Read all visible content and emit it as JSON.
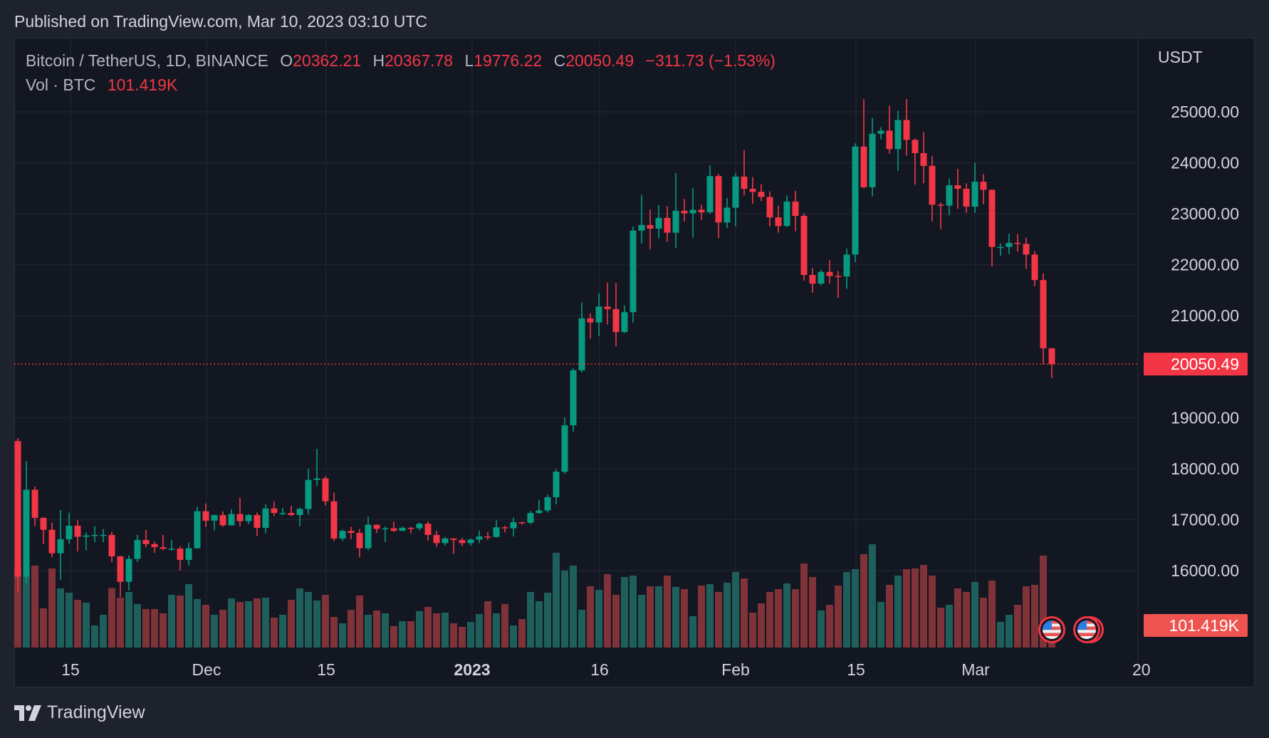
{
  "published": "Published on TradingView.com, Mar 10, 2023 03:10 UTC",
  "legend": {
    "symbol": "Bitcoin / TetherUS, 1D, BINANCE",
    "o_label": "O",
    "o": "20362.21",
    "h_label": "H",
    "h": "20367.78",
    "l_label": "L",
    "l": "19776.22",
    "c_label": "C",
    "c": "20050.49",
    "change": "−311.73 (−1.53%)",
    "vol_label": "Vol · BTC",
    "vol": "101.419K"
  },
  "price_axis": {
    "currency": "USDT",
    "labels": [
      "25000.00",
      "24000.00",
      "23000.00",
      "22000.00",
      "21000.00",
      "19000.00",
      "18000.00",
      "17000.00",
      "16000.00"
    ],
    "last_price_label": "20050.49",
    "last_volume_label": "101.419K"
  },
  "time_axis": {
    "labels": [
      "15",
      "Dec",
      "15",
      "2023",
      "16",
      "Feb",
      "15",
      "Mar",
      "20"
    ]
  },
  "logo": {
    "text": "TradingView"
  },
  "colors": {
    "up": "#089981",
    "down": "#f23645",
    "up_vol": "#1e5f5c",
    "down_vol": "#7f3238",
    "pane": "#131722",
    "grid": "#1f2330"
  },
  "event_icons": [
    "us-flag-icon",
    "us-flag-icon"
  ],
  "chart_data": {
    "type": "candlestick",
    "title": "Bitcoin / TetherUS, 1D, BINANCE",
    "ylabel": "USDT",
    "ylim": [
      15500,
      25800
    ],
    "last_price": 20050.49,
    "ohlc": [
      [
        18541,
        18600,
        15588,
        15880
      ],
      [
        15880,
        18150,
        15754,
        17586
      ],
      [
        17586,
        17650,
        16870,
        17034
      ],
      [
        17034,
        17048,
        16526,
        16800
      ],
      [
        16800,
        16940,
        16260,
        16340
      ],
      [
        16340,
        17190,
        15815,
        16616
      ],
      [
        16616,
        17134,
        16528,
        16880
      ],
      [
        16880,
        16985,
        16377,
        16664
      ],
      [
        16664,
        16750,
        16400,
        16690
      ],
      [
        16690,
        16870,
        16555,
        16700
      ],
      [
        16700,
        16820,
        16560,
        16700
      ],
      [
        16700,
        16760,
        16165,
        16280
      ],
      [
        16280,
        16290,
        15480,
        15780
      ],
      [
        15780,
        16300,
        15610,
        16230
      ],
      [
        16230,
        16700,
        16170,
        16600
      ],
      [
        16600,
        16800,
        16460,
        16520
      ],
      [
        16520,
        16570,
        16350,
        16460
      ],
      [
        16460,
        16700,
        16400,
        16430
      ],
      [
        16430,
        16600,
        16400,
        16430
      ],
      [
        16430,
        16480,
        16000,
        16210
      ],
      [
        16210,
        16550,
        16100,
        16440
      ],
      [
        16440,
        17250,
        16430,
        17165
      ],
      [
        17165,
        17320,
        16860,
        16980
      ],
      [
        16980,
        17100,
        16790,
        17090
      ],
      [
        17090,
        17160,
        16860,
        16890
      ],
      [
        16890,
        17200,
        16880,
        17110
      ],
      [
        17110,
        17430,
        16870,
        16970
      ],
      [
        16970,
        17110,
        16910,
        17090
      ],
      [
        17090,
        17140,
        16680,
        16840
      ],
      [
        16840,
        17300,
        16730,
        17220
      ],
      [
        17220,
        17360,
        17070,
        17130
      ],
      [
        17130,
        17230,
        17090,
        17130
      ],
      [
        17130,
        17270,
        17070,
        17090
      ],
      [
        17090,
        17240,
        16870,
        17210
      ],
      [
        17210,
        18000,
        17100,
        17780
      ],
      [
        17780,
        18390,
        17660,
        17810
      ],
      [
        17810,
        17850,
        17280,
        17360
      ],
      [
        17360,
        17530,
        16580,
        16630
      ],
      [
        16630,
        16800,
        16580,
        16780
      ],
      [
        16780,
        16860,
        16620,
        16740
      ],
      [
        16740,
        16820,
        16260,
        16440
      ],
      [
        16440,
        17060,
        16400,
        16900
      ],
      [
        16900,
        16900,
        16740,
        16820
      ],
      [
        16820,
        16870,
        16560,
        16830
      ],
      [
        16830,
        16960,
        16760,
        16780
      ],
      [
        16780,
        16860,
        16780,
        16840
      ],
      [
        16840,
        16860,
        16730,
        16830
      ],
      [
        16830,
        16940,
        16790,
        16920
      ],
      [
        16920,
        16970,
        16590,
        16700
      ],
      [
        16700,
        16780,
        16470,
        16540
      ],
      [
        16540,
        16660,
        16490,
        16630
      ],
      [
        16630,
        16640,
        16330,
        16600
      ],
      [
        16600,
        16640,
        16480,
        16540
      ],
      [
        16540,
        16630,
        16490,
        16610
      ],
      [
        16610,
        16790,
        16540,
        16670
      ],
      [
        16670,
        16760,
        16600,
        16660
      ],
      [
        16660,
        16990,
        16650,
        16850
      ],
      [
        16850,
        16880,
        16750,
        16830
      ],
      [
        16830,
        17040,
        16670,
        16950
      ],
      [
        16950,
        16960,
        16900,
        16940
      ],
      [
        16940,
        17170,
        16910,
        17130
      ],
      [
        17130,
        17390,
        17110,
        17180
      ],
      [
        17180,
        17490,
        17140,
        17440
      ],
      [
        17440,
        17990,
        17300,
        17940
      ],
      [
        17940,
        19000,
        17900,
        18850
      ],
      [
        18850,
        19970,
        18720,
        19930
      ],
      [
        19930,
        21260,
        19890,
        20950
      ],
      [
        20950,
        21050,
        20550,
        20870
      ],
      [
        20870,
        21440,
        20600,
        21180
      ],
      [
        21180,
        21650,
        20830,
        21130
      ],
      [
        21130,
        21640,
        20400,
        20680
      ],
      [
        20680,
        21200,
        20660,
        21070
      ],
      [
        21070,
        22750,
        20860,
        22670
      ],
      [
        22670,
        23370,
        22420,
        22780
      ],
      [
        22780,
        23080,
        22300,
        22710
      ],
      [
        22710,
        23170,
        22520,
        22920
      ],
      [
        22920,
        23150,
        22450,
        22630
      ],
      [
        22630,
        23800,
        22330,
        23060
      ],
      [
        23060,
        23290,
        22850,
        23010
      ],
      [
        23010,
        23500,
        22530,
        23080
      ],
      [
        23080,
        23180,
        22880,
        23030
      ],
      [
        23030,
        23950,
        23000,
        23740
      ],
      [
        23740,
        23780,
        22520,
        22830
      ],
      [
        22830,
        23310,
        22720,
        23120
      ],
      [
        23120,
        23800,
        22760,
        23730
      ],
      [
        23730,
        24250,
        23360,
        23490
      ],
      [
        23490,
        23720,
        23200,
        23430
      ],
      [
        23430,
        23580,
        23250,
        23330
      ],
      [
        23330,
        23440,
        22750,
        22930
      ],
      [
        22930,
        23160,
        22630,
        22760
      ],
      [
        22760,
        23360,
        22740,
        23240
      ],
      [
        23240,
        23450,
        22660,
        22960
      ],
      [
        22960,
        23010,
        21690,
        21800
      ],
      [
        21800,
        21940,
        21450,
        21630
      ],
      [
        21630,
        21900,
        21600,
        21860
      ],
      [
        21860,
        22090,
        21630,
        21780
      ],
      [
        21780,
        21880,
        21350,
        21770
      ],
      [
        21770,
        22320,
        21530,
        22200
      ],
      [
        22200,
        24380,
        22050,
        24320
      ],
      [
        24320,
        25250,
        23500,
        23520
      ],
      [
        23520,
        24880,
        23340,
        24570
      ],
      [
        24570,
        24700,
        24460,
        24630
      ],
      [
        24630,
        25120,
        24180,
        24270
      ],
      [
        24270,
        25020,
        23840,
        24840
      ],
      [
        24840,
        25250,
        24140,
        24450
      ],
      [
        24450,
        24480,
        23570,
        24190
      ],
      [
        24190,
        24600,
        23600,
        23940
      ],
      [
        23940,
        24130,
        22850,
        23180
      ],
      [
        23180,
        23220,
        22700,
        23160
      ],
      [
        23160,
        23690,
        22970,
        23560
      ],
      [
        23560,
        23880,
        23100,
        23490
      ],
      [
        23490,
        23600,
        23020,
        23140
      ],
      [
        23140,
        24000,
        23020,
        23630
      ],
      [
        23630,
        23780,
        23190,
        23470
      ],
      [
        23470,
        23480,
        21970,
        22350
      ],
      [
        22350,
        22420,
        22180,
        22350
      ],
      [
        22350,
        22610,
        22210,
        22430
      ],
      [
        22430,
        22600,
        22260,
        22410
      ],
      [
        22410,
        22530,
        21920,
        22200
      ],
      [
        22200,
        22270,
        21580,
        21700
      ],
      [
        21700,
        21830,
        20040,
        20362.21
      ],
      [
        20362.21,
        20367.78,
        19776.22,
        20050.49
      ]
    ],
    "volume_k": [
      330,
      300,
      345,
      165,
      333,
      249,
      231,
      201,
      189,
      93,
      138,
      250,
      210,
      234,
      183,
      162,
      162,
      144,
      222,
      219,
      267,
      204,
      180,
      138,
      159,
      207,
      192,
      195,
      207,
      210,
      126,
      138,
      201,
      249,
      234,
      198,
      222,
      129,
      102,
      159,
      219,
      138,
      156,
      144,
      90,
      111,
      111,
      153,
      171,
      144,
      147,
      102,
      87,
      108,
      141,
      195,
      144,
      183,
      93,
      120,
      234,
      195,
      231,
      399,
      324,
      345,
      159,
      258,
      243,
      309,
      222,
      297,
      303,
      222,
      258,
      258,
      303,
      255,
      246,
      132,
      261,
      267,
      234,
      273,
      318,
      291,
      147,
      186,
      234,
      246,
      270,
      246,
      354,
      297,
      156,
      180,
      261,
      318,
      330,
      393,
      435,
      192,
      264,
      303,
      330,
      333,
      348,
      303,
      168,
      180,
      249,
      234,
      276,
      210,
      282,
      108,
      138,
      180,
      258,
      264,
      387,
      101.419
    ]
  }
}
